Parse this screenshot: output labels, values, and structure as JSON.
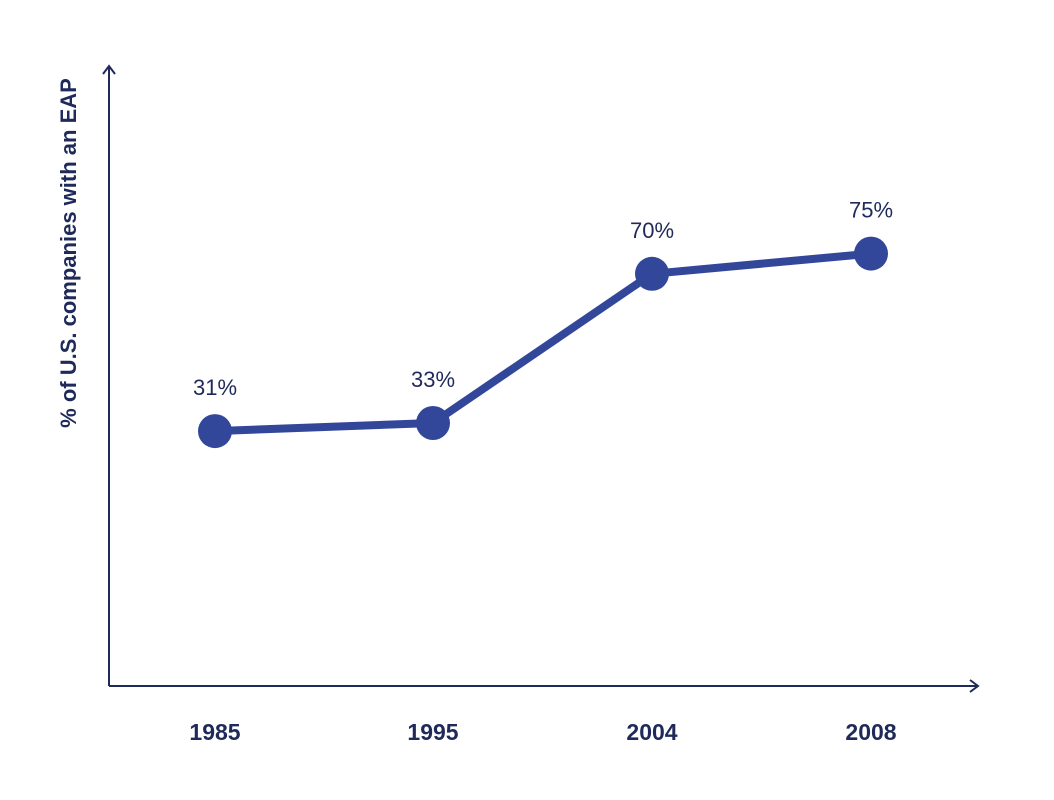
{
  "chart_data": {
    "type": "line",
    "title": "",
    "xlabel": "",
    "ylabel": "% of U.S. companies with an EAP",
    "categories": [
      "1985",
      "1995",
      "2004",
      "2008"
    ],
    "series": [
      {
        "values": [
          31,
          33,
          70,
          75
        ],
        "data_labels": [
          "31%",
          "33%",
          "70%",
          "75%"
        ]
      }
    ],
    "ylim": [
      0,
      100
    ],
    "grid": false,
    "legend": "none",
    "colors": {
      "line": "#33479a",
      "marker": "#33479a",
      "axis": "#1f2a5a",
      "text": "#1f2a5a"
    }
  }
}
